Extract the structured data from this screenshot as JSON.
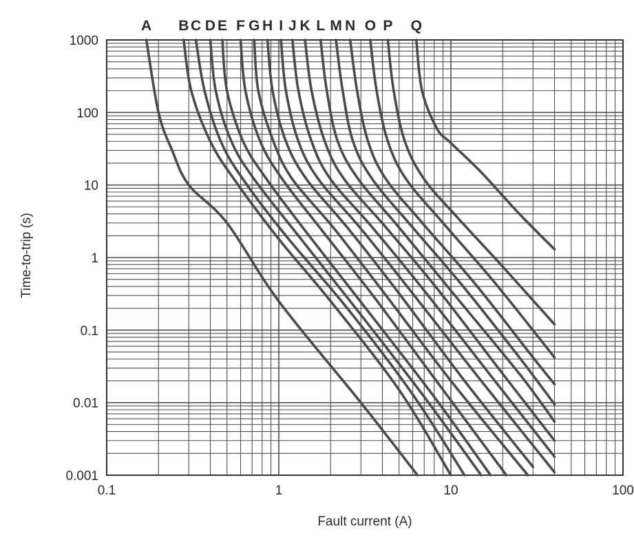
{
  "chart_data": {
    "type": "line",
    "title": "",
    "xlabel": "Fault current (A)",
    "ylabel": "Time-to-trip (s)",
    "x_scale": "log",
    "y_scale": "log",
    "xlim": [
      0.1,
      100
    ],
    "ylim": [
      0.001,
      1000
    ],
    "x_ticks": [
      "0.1",
      "1",
      "10",
      "100"
    ],
    "y_ticks": [
      "0.001",
      "0.01",
      "0.1",
      "1",
      "10",
      "100",
      "1000"
    ],
    "grid": true,
    "colors": {
      "curve": "#4a4a4a",
      "grid": "#4d4d4d",
      "text": "#2a2a2a",
      "background": "#ffffff"
    },
    "series": [
      {
        "name": "A",
        "points": [
          [
            0.17,
            1000
          ],
          [
            0.2,
            100
          ],
          [
            0.24,
            30
          ],
          [
            0.3,
            10
          ],
          [
            0.5,
            3
          ],
          [
            1.0,
            0.25
          ],
          [
            3.0,
            0.01
          ],
          [
            6.4,
            0.001
          ]
        ]
      },
      {
        "name": "B",
        "points": [
          [
            0.28,
            1000
          ],
          [
            0.31,
            200
          ],
          [
            0.4,
            40
          ],
          [
            0.55,
            12
          ],
          [
            1.0,
            1.8
          ],
          [
            2.0,
            0.25
          ],
          [
            5.0,
            0.015
          ],
          [
            10.0,
            0.001
          ]
        ]
      },
      {
        "name": "C",
        "points": [
          [
            0.33,
            1000
          ],
          [
            0.37,
            200
          ],
          [
            0.46,
            40
          ],
          [
            0.62,
            12
          ],
          [
            1.1,
            2.0
          ],
          [
            2.5,
            0.2
          ],
          [
            6.0,
            0.013
          ],
          [
            12.0,
            0.001
          ]
        ]
      },
      {
        "name": "D",
        "points": [
          [
            0.4,
            1000
          ],
          [
            0.43,
            200
          ],
          [
            0.53,
            40
          ],
          [
            0.72,
            12
          ],
          [
            1.3,
            2.0
          ],
          [
            2.8,
            0.2
          ],
          [
            7.0,
            0.012
          ],
          [
            15.0,
            0.001
          ]
        ]
      },
      {
        "name": "E",
        "points": [
          [
            0.47,
            1000
          ],
          [
            0.5,
            200
          ],
          [
            0.62,
            40
          ],
          [
            0.85,
            12
          ],
          [
            1.5,
            2.0
          ],
          [
            3.2,
            0.2
          ],
          [
            8.0,
            0.012
          ],
          [
            17.0,
            0.001
          ]
        ]
      },
      {
        "name": "F",
        "points": [
          [
            0.6,
            1000
          ],
          [
            0.64,
            200
          ],
          [
            0.78,
            40
          ],
          [
            1.05,
            12
          ],
          [
            1.8,
            2.3
          ],
          [
            3.6,
            0.28
          ],
          [
            9.0,
            0.015
          ],
          [
            21.0,
            0.001
          ]
        ]
      },
      {
        "name": "G",
        "points": [
          [
            0.72,
            1000
          ],
          [
            0.76,
            200
          ],
          [
            0.93,
            40
          ],
          [
            1.2,
            12
          ],
          [
            2.1,
            2.5
          ],
          [
            4.2,
            0.3
          ],
          [
            10.0,
            0.02
          ],
          [
            28.0,
            0.001
          ]
        ]
      },
      {
        "name": "H",
        "points": [
          [
            0.86,
            1000
          ],
          [
            0.92,
            200
          ],
          [
            1.1,
            40
          ],
          [
            1.45,
            12
          ],
          [
            2.5,
            2.6
          ],
          [
            5.0,
            0.32
          ],
          [
            12.0,
            0.02
          ],
          [
            30.0,
            0.0013
          ]
        ]
      },
      {
        "name": "I",
        "points": [
          [
            1.03,
            1000
          ],
          [
            1.1,
            200
          ],
          [
            1.3,
            40
          ],
          [
            1.7,
            12
          ],
          [
            3.0,
            2.5
          ],
          [
            6.0,
            0.32
          ],
          [
            15.0,
            0.02
          ],
          [
            40.0,
            0.0011
          ]
        ]
      },
      {
        "name": "J",
        "points": [
          [
            1.2,
            1000
          ],
          [
            1.3,
            200
          ],
          [
            1.55,
            40
          ],
          [
            2.0,
            12
          ],
          [
            3.5,
            2.6
          ],
          [
            7.0,
            0.35
          ],
          [
            18.0,
            0.02
          ],
          [
            40.0,
            0.0018
          ]
        ]
      },
      {
        "name": "K",
        "points": [
          [
            1.42,
            1000
          ],
          [
            1.55,
            200
          ],
          [
            1.85,
            40
          ],
          [
            2.4,
            12
          ],
          [
            4.2,
            2.6
          ],
          [
            8.5,
            0.35
          ],
          [
            20.0,
            0.025
          ],
          [
            40.0,
            0.003
          ]
        ]
      },
      {
        "name": "L",
        "points": [
          [
            1.75,
            1000
          ],
          [
            1.9,
            200
          ],
          [
            2.2,
            40
          ],
          [
            2.9,
            12
          ],
          [
            5.0,
            2.6
          ],
          [
            10.0,
            0.35
          ],
          [
            25.0,
            0.025
          ],
          [
            40.0,
            0.0055
          ]
        ]
      },
      {
        "name": "M",
        "points": [
          [
            2.15,
            1000
          ],
          [
            2.35,
            200
          ],
          [
            2.7,
            40
          ],
          [
            3.5,
            12
          ],
          [
            6.0,
            2.6
          ],
          [
            12.0,
            0.38
          ],
          [
            25.0,
            0.042
          ],
          [
            40.0,
            0.0095
          ]
        ]
      },
      {
        "name": "N",
        "points": [
          [
            2.6,
            1000
          ],
          [
            2.85,
            200
          ],
          [
            3.3,
            40
          ],
          [
            4.2,
            12
          ],
          [
            7.0,
            2.8
          ],
          [
            14.0,
            0.42
          ],
          [
            30.0,
            0.042
          ],
          [
            40.0,
            0.018
          ]
        ]
      },
      {
        "name": "O",
        "points": [
          [
            3.4,
            1000
          ],
          [
            3.7,
            200
          ],
          [
            4.3,
            40
          ],
          [
            5.5,
            12
          ],
          [
            9.0,
            3.0
          ],
          [
            18.0,
            0.45
          ],
          [
            40.0,
            0.042
          ]
        ]
      },
      {
        "name": "P",
        "points": [
          [
            4.3,
            1000
          ],
          [
            4.65,
            200
          ],
          [
            5.4,
            40
          ],
          [
            7.0,
            12
          ],
          [
            11.0,
            3.5
          ],
          [
            20.0,
            0.75
          ],
          [
            40.0,
            0.12
          ]
        ]
      },
      {
        "name": "Q",
        "points": [
          [
            6.3,
            1000
          ],
          [
            6.8,
            200
          ],
          [
            8.3,
            60
          ],
          [
            10.0,
            38
          ],
          [
            15.0,
            15
          ],
          [
            25.0,
            4.0
          ],
          [
            40.0,
            1.3
          ]
        ]
      }
    ]
  }
}
